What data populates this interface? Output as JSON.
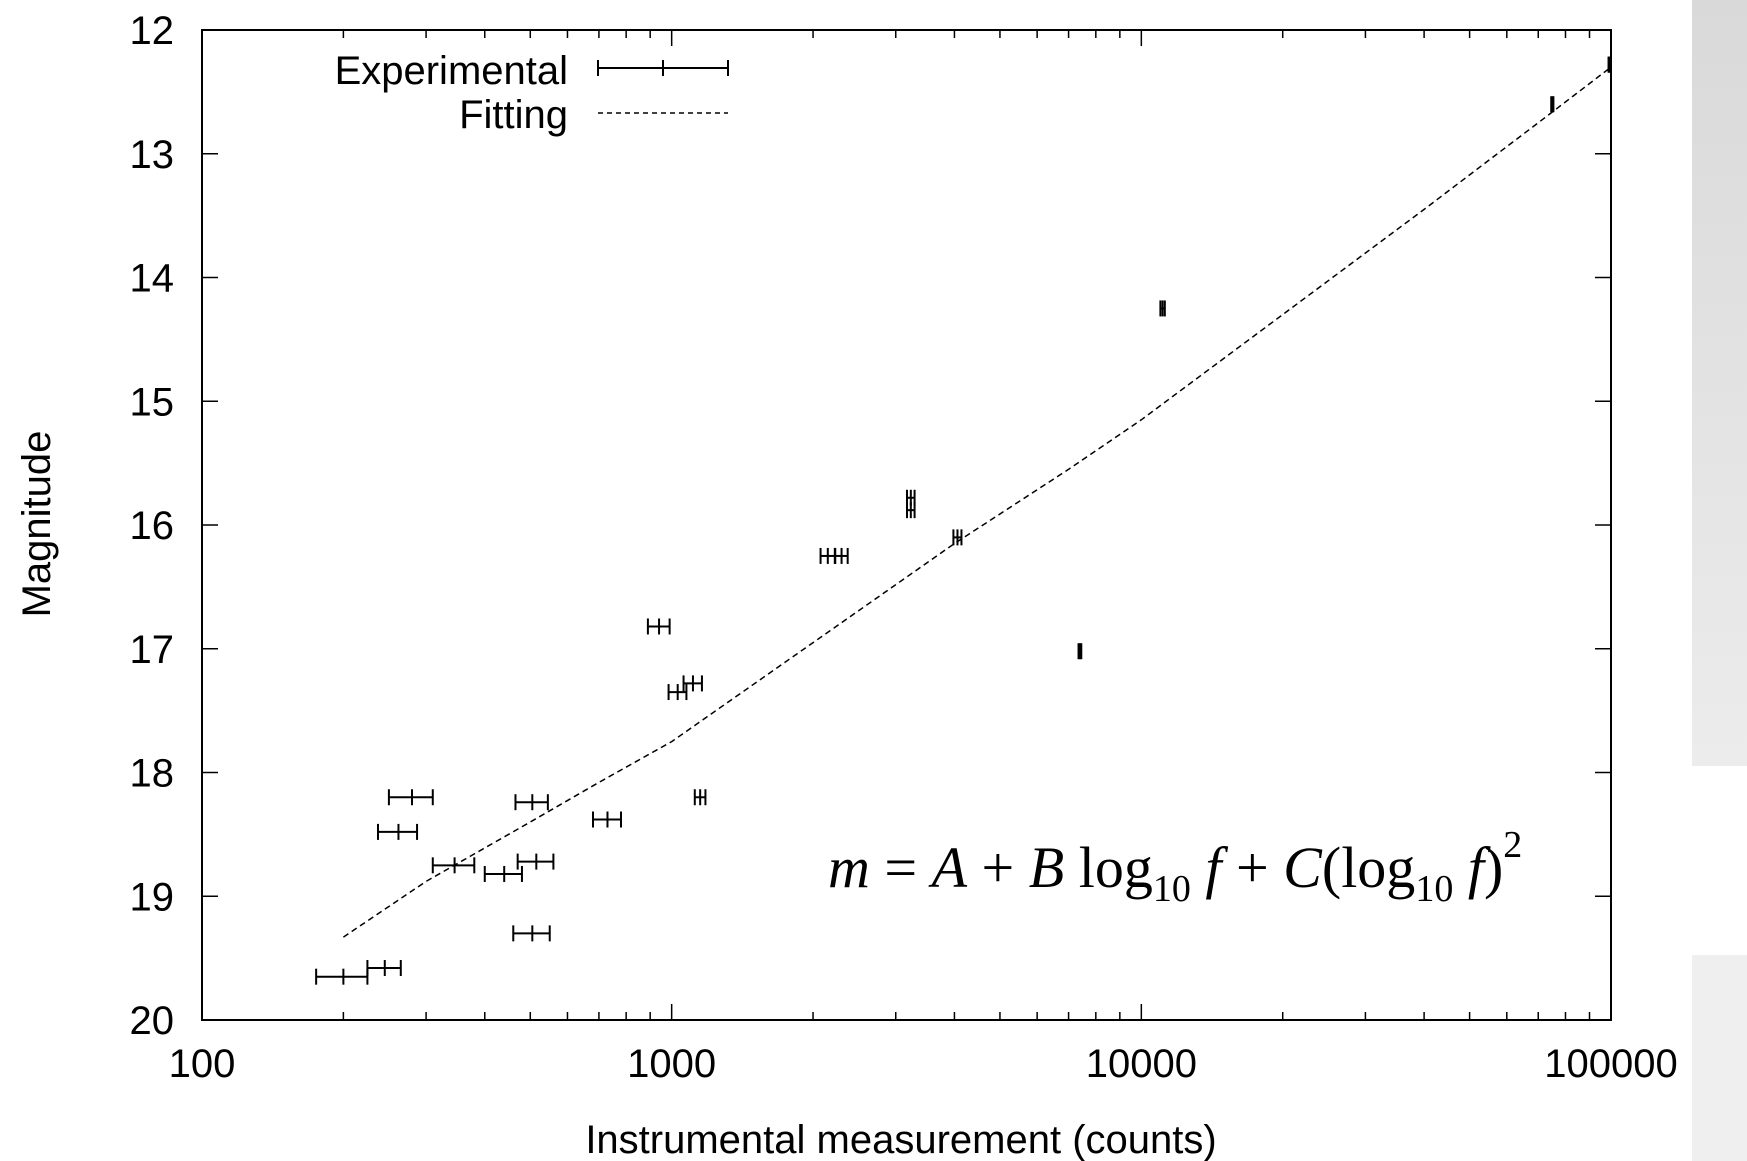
{
  "chart_data": {
    "type": "scatter",
    "xlabel": "Instrumental measurement (counts)",
    "ylabel": "Magnitude",
    "x_scale": "log",
    "xlim": [
      100,
      100000
    ],
    "ylim": [
      12,
      20
    ],
    "y_inverted": true,
    "x_tick_labels": [
      "100",
      "1000",
      "10000",
      "100000"
    ],
    "x_ticks": [
      100,
      1000,
      10000,
      100000
    ],
    "y_tick_labels": [
      "12",
      "13",
      "14",
      "15",
      "16",
      "17",
      "18",
      "19",
      "20"
    ],
    "y_ticks": [
      12,
      13,
      14,
      15,
      16,
      17,
      18,
      19,
      20
    ],
    "legend": {
      "position": "top-left",
      "entries": [
        {
          "label": "Experimental",
          "style": "errorbar"
        },
        {
          "label": "Fitting",
          "style": "dashed"
        }
      ]
    },
    "series": [
      {
        "name": "Experimental",
        "style": "x-errorbar",
        "points": [
          {
            "x": 200,
            "y": 19.65,
            "xerr": 25
          },
          {
            "x": 245,
            "y": 19.58,
            "xerr": 20
          },
          {
            "x": 280,
            "y": 18.2,
            "xerr": 30
          },
          {
            "x": 262,
            "y": 18.48,
            "xerr": 25
          },
          {
            "x": 345,
            "y": 18.75,
            "xerr": 35
          },
          {
            "x": 440,
            "y": 18.82,
            "xerr": 40
          },
          {
            "x": 505,
            "y": 18.24,
            "xerr": 40
          },
          {
            "x": 515,
            "y": 18.72,
            "xerr": 45
          },
          {
            "x": 505,
            "y": 19.3,
            "xerr": 45
          },
          {
            "x": 730,
            "y": 18.38,
            "xerr": 50
          },
          {
            "x": 940,
            "y": 16.82,
            "xerr": 50
          },
          {
            "x": 1030,
            "y": 17.35,
            "xerr": 45
          },
          {
            "x": 1110,
            "y": 17.28,
            "xerr": 50
          },
          {
            "x": 1150,
            "y": 18.2,
            "xerr": 30
          },
          {
            "x": 2150,
            "y": 16.25,
            "xerr": 75
          },
          {
            "x": 2300,
            "y": 16.25,
            "xerr": 70
          },
          {
            "x": 3230,
            "y": 15.78,
            "xerr": 60
          },
          {
            "x": 3230,
            "y": 15.88,
            "xerr": 60
          },
          {
            "x": 4060,
            "y": 16.1,
            "xerr": 80
          },
          {
            "x": 7400,
            "y": 17.02,
            "xerr": 50
          },
          {
            "x": 11100,
            "y": 14.25,
            "xerr": 120
          },
          {
            "x": 75000,
            "y": 12.6,
            "xerr": 400
          },
          {
            "x": 99000,
            "y": 12.28,
            "xerr": 200
          }
        ]
      },
      {
        "name": "Fitting",
        "style": "dashed-line",
        "x": [
          200,
          300,
          500,
          700,
          1000,
          2000,
          4000,
          7000,
          10000,
          20000,
          40000,
          70000,
          100000
        ],
        "y": [
          19.33,
          18.88,
          18.4,
          18.08,
          17.75,
          16.95,
          16.15,
          15.55,
          15.15,
          14.3,
          13.45,
          12.75,
          12.3
        ]
      }
    ]
  },
  "annotation": {
    "m": "m",
    "eq": " = ",
    "A": "A",
    "plus1": " + ",
    "B": "B",
    "log1": "log",
    "sub1": "10",
    "f1": " f",
    "plus2": " + ",
    "C": "C",
    "paren_open": "(",
    "log2": "log",
    "sub2": "10",
    "f2": " f",
    "paren_close": ")",
    "exponent": "2"
  },
  "colors": {
    "axis": "#000000",
    "series": "#000000",
    "background": "#ffffff"
  }
}
